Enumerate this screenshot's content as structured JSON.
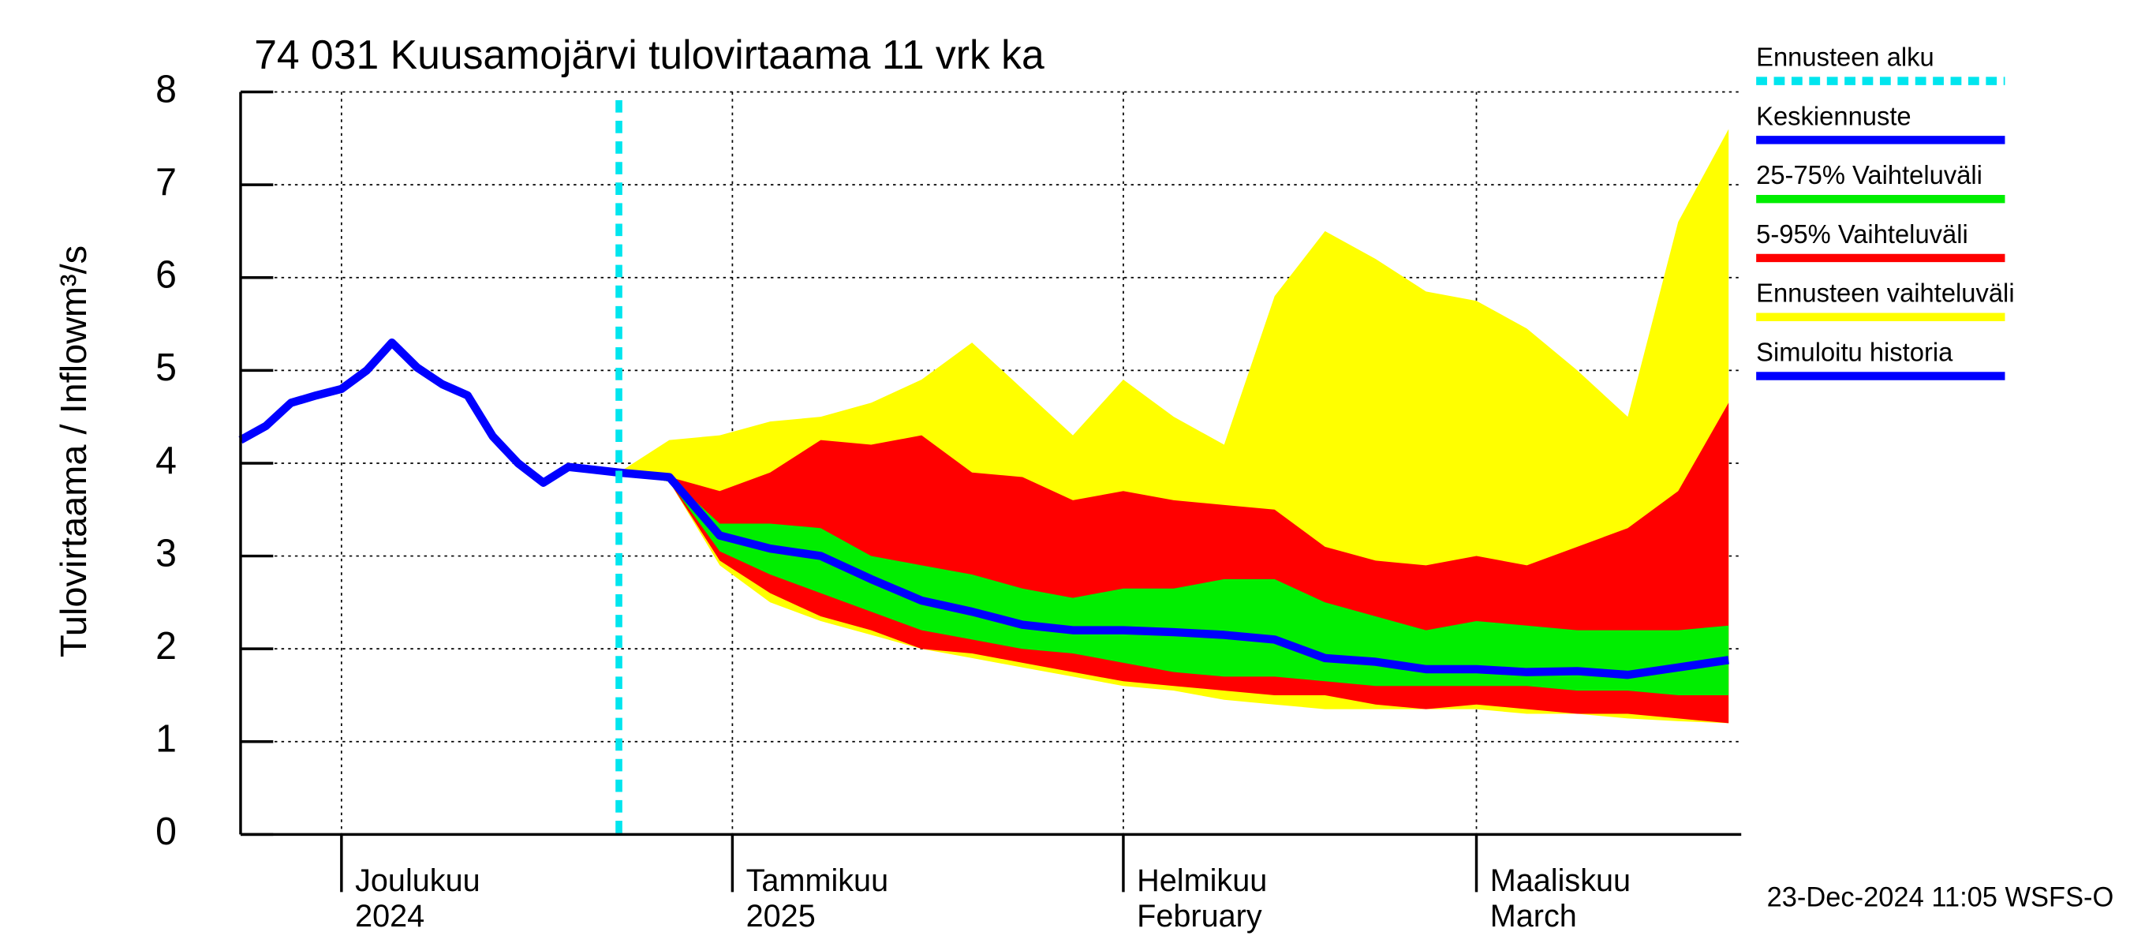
{
  "chart_data": {
    "type": "line",
    "title": "74 031 Kuusamojärvi tulovirtaama 11 vrk ka",
    "ylabel": "Tulovirtaama / Inflow",
    "yunit": "m³/s",
    "footer": "23-Dec-2024 11:05 WSFS-O",
    "xlim": [
      "2024-11-23",
      "2025-03-22"
    ],
    "xticks": [
      {
        "value": "2024-12-01",
        "label": "Joulukuu",
        "sublabel": "2024"
      },
      {
        "value": "2025-01-01",
        "label": "Tammikuu",
        "sublabel": "2025"
      },
      {
        "value": "2025-02-01",
        "label": "Helmikuu",
        "sublabel": "February"
      },
      {
        "value": "2025-03-01",
        "label": "Maaliskuu",
        "sublabel": "March"
      }
    ],
    "ylim": [
      0,
      8
    ],
    "yticks": [
      0,
      1,
      2,
      3,
      4,
      5,
      6,
      7,
      8
    ],
    "grid": true,
    "x": [
      "2024-12-23",
      "2024-12-27",
      "2024-12-31",
      "2025-01-04",
      "2025-01-08",
      "2025-01-12",
      "2025-01-16",
      "2025-01-20",
      "2025-01-24",
      "2025-01-28",
      "2025-02-01",
      "2025-02-05",
      "2025-02-09",
      "2025-02-13",
      "2025-02-17",
      "2025-02-21",
      "2025-02-25",
      "2025-03-01",
      "2025-03-05",
      "2025-03-09",
      "2025-03-13",
      "2025-03-17",
      "2025-03-21"
    ],
    "series": [
      {
        "name": "Ennusteen alku",
        "color": "#00e5ee",
        "x": "2024-12-23"
      },
      {
        "name": "Keskiennuste",
        "color": "#0000ff",
        "values": [
          3.9,
          3.85,
          3.22,
          3.08,
          3.0,
          2.75,
          2.52,
          2.4,
          2.26,
          2.2,
          2.2,
          2.18,
          2.15,
          2.1,
          1.9,
          1.86,
          1.78,
          1.78,
          1.75,
          1.76,
          1.72,
          1.8,
          1.88
        ]
      },
      {
        "name": "25-75% Vaihteluväli",
        "color": "#00ee00",
        "low": [
          3.9,
          3.8,
          3.05,
          2.8,
          2.6,
          2.4,
          2.2,
          2.1,
          2.0,
          1.95,
          1.85,
          1.75,
          1.7,
          1.7,
          1.65,
          1.6,
          1.6,
          1.6,
          1.6,
          1.55,
          1.55,
          1.5,
          1.5
        ],
        "high": [
          3.9,
          3.85,
          3.35,
          3.35,
          3.3,
          3.0,
          2.9,
          2.8,
          2.65,
          2.55,
          2.65,
          2.65,
          2.75,
          2.75,
          2.5,
          2.35,
          2.2,
          2.3,
          2.25,
          2.2,
          2.2,
          2.2,
          2.25
        ]
      },
      {
        "name": "5-95% Vaihteluväli",
        "color": "#ff0000",
        "low": [
          3.9,
          3.8,
          2.95,
          2.6,
          2.35,
          2.2,
          2.0,
          1.95,
          1.85,
          1.75,
          1.65,
          1.6,
          1.55,
          1.5,
          1.5,
          1.4,
          1.35,
          1.4,
          1.35,
          1.3,
          1.3,
          1.25,
          1.2
        ],
        "high": [
          3.9,
          3.85,
          3.7,
          3.9,
          4.25,
          4.2,
          4.3,
          3.9,
          3.85,
          3.6,
          3.7,
          3.6,
          3.55,
          3.5,
          3.1,
          2.95,
          2.9,
          3.0,
          2.9,
          3.1,
          3.3,
          3.7,
          4.65
        ]
      },
      {
        "name": "Ennusteen vaihteluväli",
        "color": "#ffff00",
        "low": [
          3.9,
          3.8,
          2.9,
          2.5,
          2.3,
          2.15,
          2.0,
          1.9,
          1.8,
          1.7,
          1.6,
          1.55,
          1.45,
          1.4,
          1.35,
          1.35,
          1.35,
          1.35,
          1.3,
          1.3,
          1.25,
          1.22,
          1.2
        ],
        "high": [
          3.9,
          4.25,
          4.3,
          4.45,
          4.5,
          4.65,
          4.9,
          5.3,
          4.8,
          4.3,
          4.9,
          4.5,
          4.2,
          5.8,
          6.5,
          6.2,
          5.85,
          5.75,
          5.45,
          5.0,
          4.5,
          6.6,
          7.6
        ]
      },
      {
        "name": "Simuloitu historia",
        "color": "#0000ff",
        "x": [
          "2024-11-23",
          "2024-11-25",
          "2024-11-27",
          "2024-11-29",
          "2024-12-01",
          "2024-12-03",
          "2024-12-05",
          "2024-12-07",
          "2024-12-09",
          "2024-12-11",
          "2024-12-13",
          "2024-12-15",
          "2024-12-17",
          "2024-12-19",
          "2024-12-21",
          "2024-12-23"
        ],
        "values": [
          4.25,
          4.4,
          4.65,
          4.73,
          4.8,
          5.0,
          5.3,
          5.03,
          4.85,
          4.73,
          4.29,
          4.0,
          3.79,
          3.96,
          3.93,
          3.9
        ]
      }
    ]
  }
}
